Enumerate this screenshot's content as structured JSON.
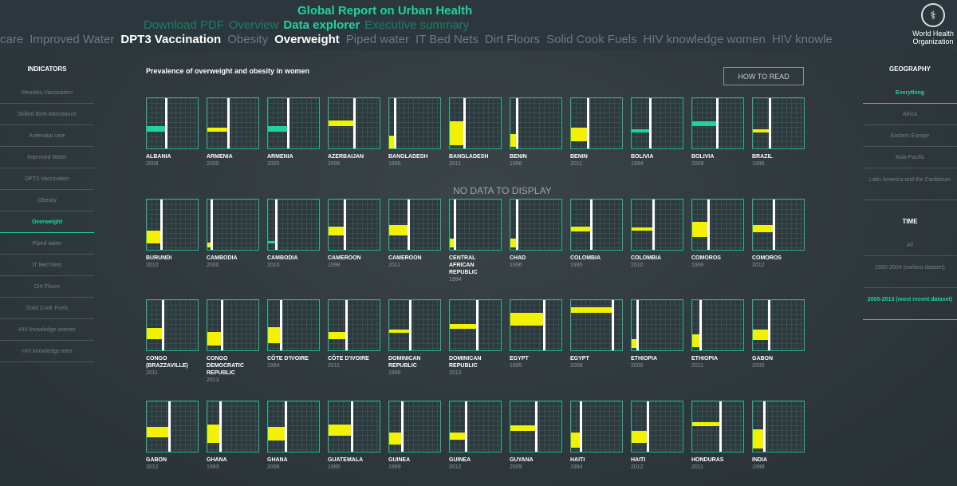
{
  "header": {
    "title": "Global Report on Urban Health",
    "nav": [
      "Download PDF",
      "Overview",
      "Data explorer",
      "Executive summary"
    ],
    "nav_active": 2,
    "ticker": [
      "care",
      "Improved Water",
      "DPT3 Vaccination",
      "Obesity",
      "Overweight",
      "Piped water",
      "IT Bed Nets",
      "Dirt Floors",
      "Solid Cook Fuels",
      "HIV knowledge women",
      "HIV knowle"
    ],
    "ticker_active": [
      2,
      4
    ],
    "logo": "World Health Organization"
  },
  "indicators": {
    "title": "INDICATORS",
    "items": [
      "Measles Vaccination",
      "Skilled Birth Attendance",
      "Antenatal care",
      "Improved Water",
      "DPT3 Vaccination",
      "Obesity",
      "Overweight",
      "Piped water",
      "IT Bed Nets",
      "Dirt Floors",
      "Solid Cook Fuels",
      "HIV knowledge women",
      "HIV knowledge men"
    ],
    "active": 6
  },
  "geography": {
    "title": "GEOGRAPHY",
    "items": [
      "Everything",
      "Africa",
      "Eastern Europe",
      "Asia-Pacific",
      "Latin America and the Caribbean"
    ],
    "active": 0
  },
  "time": {
    "title": "TIME",
    "items": [
      "All",
      "1990-2004 (earliest dataset)",
      "2005-2013 (most recent dataset)"
    ],
    "active": 2
  },
  "main": {
    "title": "Prevalence of overweight and obesity in women",
    "how_to_read": "HOW TO READ",
    "no_data": "NO DATA TO DISPLAY"
  },
  "colors": {
    "accent": "#1fd49b",
    "yellow": "#f2f200",
    "teal": "#1fd49b",
    "background": "#30393e"
  },
  "tiles": [
    [
      "ALBANIA",
      "2008",
      0.36,
      0.55,
      0.66,
      "teal"
    ],
    [
      "ARMENIA",
      "2000",
      0.39,
      0.58,
      0.66,
      "yellow"
    ],
    [
      "ARMENIA",
      "2005",
      0.38,
      0.55,
      0.66,
      "teal"
    ],
    [
      "AZERBAIJAN",
      "2006",
      0.48,
      0.45,
      0.55,
      "yellow"
    ],
    [
      "BANGLADESH",
      "1996",
      0.09,
      0.75,
      1.0,
      "yellow"
    ],
    [
      "BANGLADESH",
      "2011",
      0.26,
      0.46,
      0.94,
      "yellow"
    ],
    [
      "BENIN",
      "1996",
      0.11,
      0.71,
      0.97,
      "yellow"
    ],
    [
      "BENIN",
      "2011",
      0.32,
      0.58,
      0.85,
      "yellow"
    ],
    [
      "BOLIVIA",
      "1994",
      0.35,
      0.62,
      0.68,
      "teal"
    ],
    [
      "BOLIVIA",
      "2008",
      0.47,
      0.46,
      0.55,
      "teal"
    ],
    [
      "BRAZIL",
      "1996",
      0.32,
      0.62,
      0.69,
      "yellow"
    ],
    [
      "BURUNDI",
      "2010",
      0.26,
      0.62,
      0.88,
      "yellow"
    ],
    [
      "CAMBODIA",
      "2000",
      0.06,
      0.86,
      0.95,
      "yellow"
    ],
    [
      "CAMBODIA",
      "2010",
      0.14,
      0.83,
      0.88,
      "teal"
    ],
    [
      "CAMEROON",
      "1998",
      0.3,
      0.54,
      0.71,
      "yellow"
    ],
    [
      "CAMEROON",
      "2011",
      0.36,
      0.51,
      0.72,
      "yellow"
    ],
    [
      "CENTRAL AFRICAN REPUBLIC",
      "1994",
      0.08,
      0.78,
      0.95,
      "yellow"
    ],
    [
      "CHAD",
      "1996",
      0.11,
      0.78,
      0.95,
      "yellow"
    ],
    [
      "COLOMBIA",
      "1995",
      0.38,
      0.54,
      0.63,
      "yellow"
    ],
    [
      "COLOMBIA",
      "2010",
      0.41,
      0.55,
      0.62,
      "yellow"
    ],
    [
      "COMOROS",
      "1996",
      0.3,
      0.45,
      0.74,
      "yellow"
    ],
    [
      "COMOROS",
      "2012",
      0.39,
      0.51,
      0.65,
      "yellow"
    ],
    [
      "CONGO (BRAZZAVILLE)",
      "2011",
      0.3,
      0.55,
      0.78,
      "yellow"
    ],
    [
      "CONGO DEMOCRATIC REPUBLIC",
      "2013",
      0.26,
      0.63,
      0.91,
      "yellow"
    ],
    [
      "CÔTE D'IVOIRE",
      "1994",
      0.23,
      0.54,
      0.86,
      "yellow"
    ],
    [
      "CÔTE D'IVOIRE",
      "2011",
      0.33,
      0.63,
      0.77,
      "yellow"
    ],
    [
      "DOMINICAN REPUBLIC",
      "1996",
      0.39,
      0.58,
      0.65,
      "yellow"
    ],
    [
      "DOMINICAN REPUBLIC",
      "2013",
      0.52,
      0.48,
      0.57,
      "yellow"
    ],
    [
      "EGYPT",
      "1995",
      0.64,
      0.26,
      0.51,
      "yellow"
    ],
    [
      "EGYPT",
      "2008",
      0.8,
      0.15,
      0.26,
      "yellow"
    ],
    [
      "ETHIOPIA",
      "2000",
      0.09,
      0.78,
      0.95,
      "yellow"
    ],
    [
      "ETHIOPIA",
      "2011",
      0.14,
      0.69,
      0.94,
      "yellow"
    ],
    [
      "GABON",
      "2000",
      0.3,
      0.58,
      0.8,
      "yellow"
    ],
    [
      "GABON",
      "2012",
      0.42,
      0.51,
      0.71,
      "yellow"
    ],
    [
      "GHANA",
      "1993",
      0.23,
      0.46,
      0.83,
      "yellow"
    ],
    [
      "GHANA",
      "2008",
      0.33,
      0.51,
      0.77,
      "yellow"
    ],
    [
      "GUATEMALA",
      "1995",
      0.44,
      0.46,
      0.68,
      "yellow"
    ],
    [
      "GUINEA",
      "1999",
      0.23,
      0.62,
      0.85,
      "yellow"
    ],
    [
      "GUINEA",
      "2012",
      0.3,
      0.62,
      0.77,
      "yellow"
    ],
    [
      "GUYANA",
      "2009",
      0.48,
      0.48,
      0.58,
      "yellow"
    ],
    [
      "HAITI",
      "1994",
      0.17,
      0.62,
      0.92,
      "yellow"
    ],
    [
      "HAITI",
      "2012",
      0.29,
      0.58,
      0.82,
      "yellow"
    ],
    [
      "HONDURAS",
      "2011",
      0.53,
      0.42,
      0.49,
      "yellow"
    ],
    [
      "INDIA",
      "1998",
      0.21,
      0.55,
      0.94,
      "yellow"
    ]
  ]
}
